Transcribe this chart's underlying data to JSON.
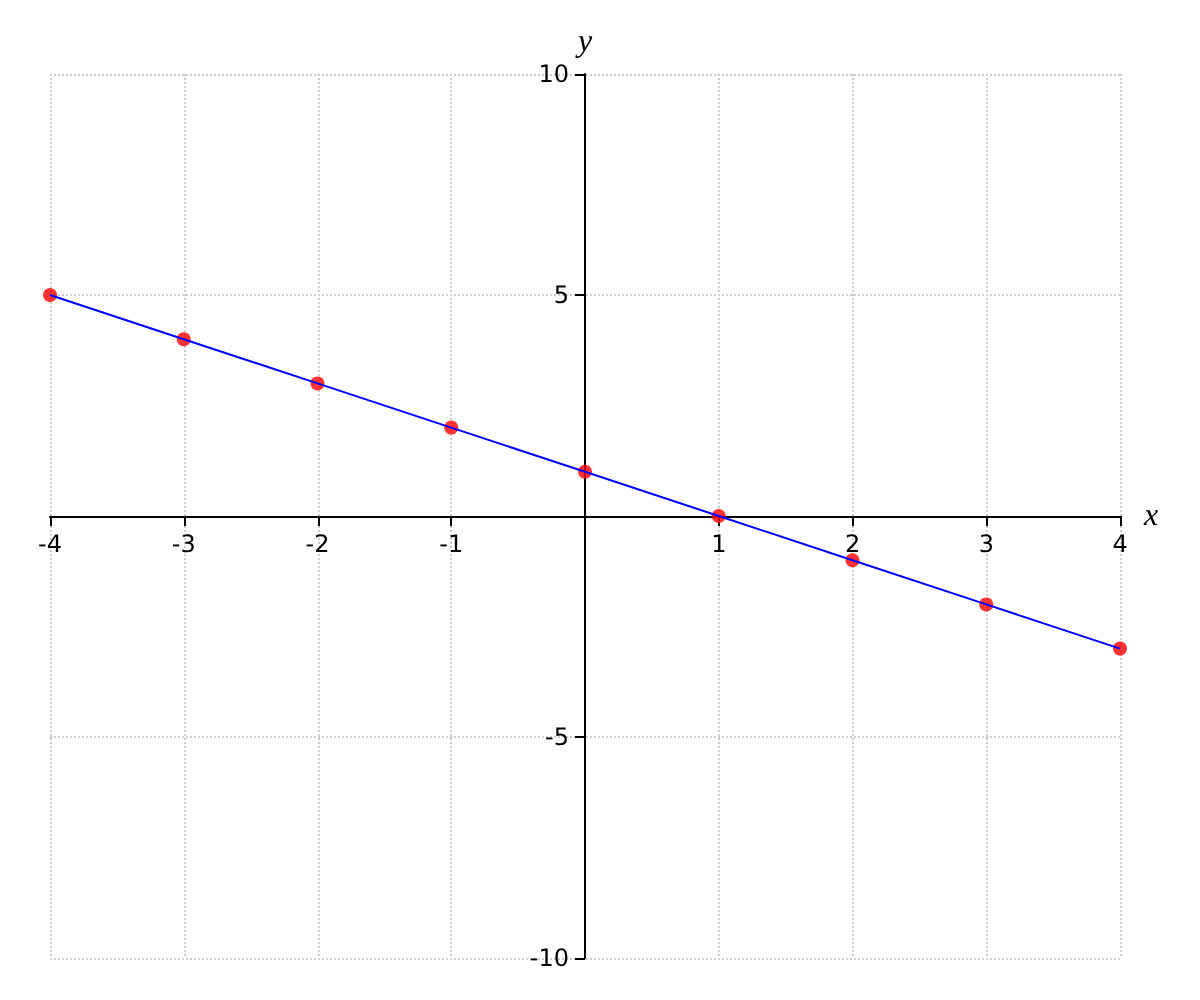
{
  "chart_data": {
    "type": "line",
    "xlabel": "x",
    "ylabel": "y",
    "x": [
      -4,
      -3,
      -2,
      -1,
      0,
      1,
      2,
      3,
      4
    ],
    "series": [
      {
        "color": "#0000ff",
        "marker": "none",
        "values": [
          5,
          4,
          3,
          2,
          1,
          0,
          -1,
          -2,
          -3
        ]
      },
      {
        "type": "scatter",
        "color": "#ff0000",
        "marker": "circle",
        "values": [
          5,
          4,
          3,
          2,
          1,
          0,
          -1,
          -2,
          -3
        ]
      }
    ],
    "xlim": [
      -4,
      4
    ],
    "xticks": [
      -4,
      -3,
      -2,
      -1,
      1,
      2,
      3,
      4
    ],
    "ylim": [
      -10,
      10
    ],
    "yticks": [
      -10,
      -5,
      5,
      10
    ],
    "grid": true
  }
}
